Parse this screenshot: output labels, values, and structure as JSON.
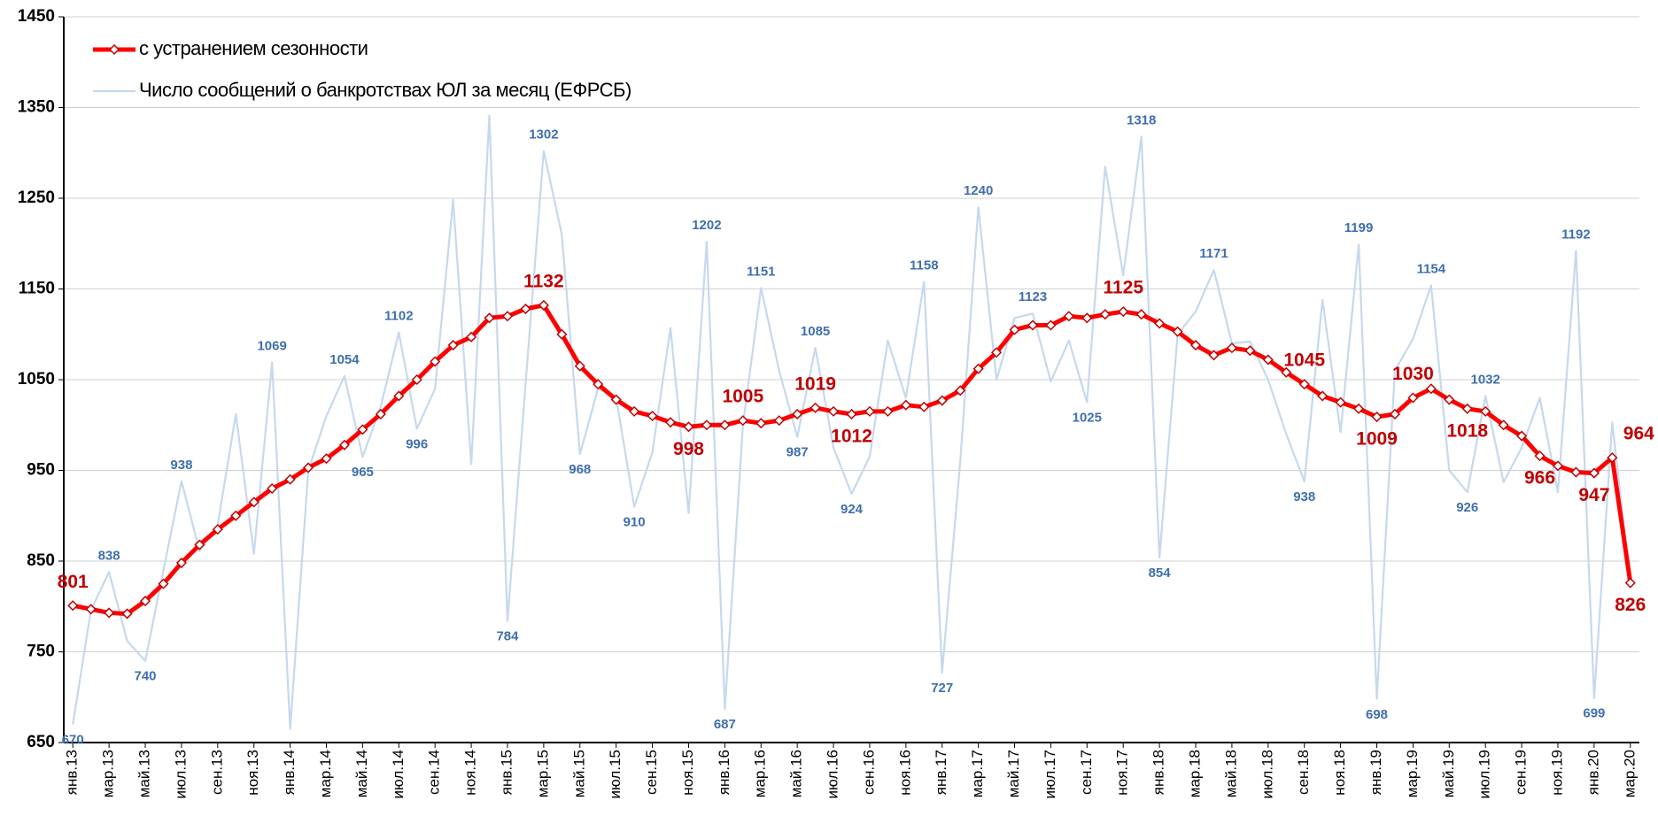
{
  "chart_data": {
    "type": "line",
    "categories": [
      "янв.13",
      null,
      "мар.13",
      null,
      "май.13",
      null,
      "июл.13",
      null,
      "сен.13",
      null,
      "ноя.13",
      null,
      "янв.14",
      null,
      "мар.14",
      null,
      "май.14",
      null,
      "июл.14",
      null,
      "сен.14",
      null,
      "ноя.14",
      null,
      "янв.15",
      null,
      "мар.15",
      null,
      "май.15",
      null,
      "июл.15",
      null,
      "сен.15",
      null,
      "ноя.15",
      null,
      "янв.16",
      null,
      "мар.16",
      null,
      "май.16",
      null,
      "июл.16",
      null,
      "сен.16",
      null,
      "ноя.16",
      null,
      "янв.17",
      null,
      "мар.17",
      null,
      "май.17",
      null,
      "июл.17",
      null,
      "сен.17",
      null,
      "ноя.17",
      null,
      "янв.18",
      null,
      "мар.18",
      null,
      "май.18",
      null,
      "июл.18",
      null,
      "сен.18",
      null,
      "ноя.18",
      null,
      "янв.19",
      null,
      "мар.19",
      null,
      "май.19",
      null,
      "июл.19",
      null,
      "сен.19",
      null,
      "ноя.19",
      null,
      "янв.20",
      null,
      "мар.20"
    ],
    "series": [
      {
        "name": "Число сообщений о банкротствах ЮЛ за месяц (ЕФРСБ)",
        "color": "#c5d9ee",
        "label_color": "#3f6fae",
        "values": [
          670,
          796,
          838,
          762,
          740,
          840,
          938,
          861,
          890,
          1012,
          858,
          1069,
          665,
          950,
          1010,
          1054,
          965,
          1020,
          1102,
          996,
          1040,
          1248,
          957,
          1341,
          784,
          1045,
          1302,
          1210,
          968,
          1040,
          1030,
          910,
          970,
          1107,
          903,
          1202,
          687,
          1000,
          1151,
          1060,
          987,
          1085,
          975,
          924,
          965,
          1093,
          1030,
          1158,
          727,
          960,
          1240,
          1050,
          1118,
          1123,
          1048,
          1093,
          1025,
          1285,
          1165,
          1318,
          854,
          1100,
          1125,
          1171,
          1090,
          1092,
          1050,
          990,
          938,
          1138,
          992,
          1199,
          698,
          1060,
          1095,
          1154,
          950,
          926,
          1032,
          937,
          975,
          1030,
          926,
          1192,
          699,
          1003,
          826
        ],
        "value_labels": [
          670,
          null,
          838,
          null,
          740,
          null,
          938,
          null,
          null,
          null,
          null,
          1069,
          null,
          null,
          null,
          1054,
          965,
          null,
          1102,
          996,
          null,
          null,
          null,
          null,
          784,
          null,
          1302,
          null,
          968,
          null,
          null,
          910,
          null,
          null,
          null,
          1202,
          687,
          null,
          1151,
          null,
          987,
          1085,
          null,
          924,
          null,
          null,
          null,
          1158,
          727,
          null,
          1240,
          null,
          null,
          1123,
          null,
          null,
          1025,
          null,
          null,
          1318,
          854,
          null,
          null,
          1171,
          null,
          null,
          null,
          null,
          938,
          null,
          null,
          1199,
          698,
          null,
          null,
          1154,
          null,
          926,
          1032,
          null,
          null,
          null,
          null,
          1192,
          699,
          null,
          null
        ]
      },
      {
        "name": "с устранением сезонности",
        "color": "#ff0000",
        "label_color": "#c00000",
        "values": [
          801,
          797,
          793,
          792,
          806,
          825,
          848,
          868,
          885,
          900,
          915,
          930,
          940,
          953,
          963,
          978,
          995,
          1012,
          1032,
          1050,
          1070,
          1088,
          1097,
          1118,
          1120,
          1128,
          1132,
          1100,
          1065,
          1045,
          1028,
          1015,
          1010,
          1003,
          998,
          1000,
          1000,
          1005,
          1002,
          1005,
          1012,
          1019,
          1015,
          1012,
          1015,
          1015,
          1022,
          1020,
          1027,
          1038,
          1062,
          1080,
          1105,
          1110,
          1110,
          1120,
          1118,
          1122,
          1125,
          1122,
          1112,
          1103,
          1088,
          1077,
          1085,
          1082,
          1072,
          1058,
          1045,
          1032,
          1025,
          1018,
          1009,
          1012,
          1030,
          1040,
          1028,
          1018,
          1015,
          1000,
          988,
          966,
          955,
          948,
          947,
          964,
          826
        ],
        "value_labels": [
          801,
          null,
          null,
          null,
          null,
          null,
          null,
          null,
          null,
          null,
          null,
          null,
          null,
          null,
          null,
          null,
          null,
          null,
          null,
          null,
          null,
          null,
          null,
          null,
          null,
          null,
          1132,
          null,
          null,
          null,
          null,
          null,
          null,
          null,
          998,
          null,
          null,
          1005,
          null,
          null,
          null,
          1019,
          null,
          1012,
          null,
          null,
          null,
          null,
          null,
          null,
          null,
          null,
          null,
          null,
          null,
          null,
          null,
          null,
          1125,
          null,
          null,
          null,
          null,
          null,
          null,
          null,
          null,
          null,
          1045,
          null,
          null,
          null,
          1009,
          null,
          1030,
          null,
          null,
          1018,
          null,
          null,
          null,
          966,
          null,
          null,
          947,
          964,
          826
        ]
      }
    ],
    "ylim": [
      650,
      1450
    ],
    "yticks": [
      650,
      750,
      850,
      950,
      1050,
      1150,
      1250,
      1350,
      1450
    ],
    "grid": true,
    "legend": "top-left"
  }
}
